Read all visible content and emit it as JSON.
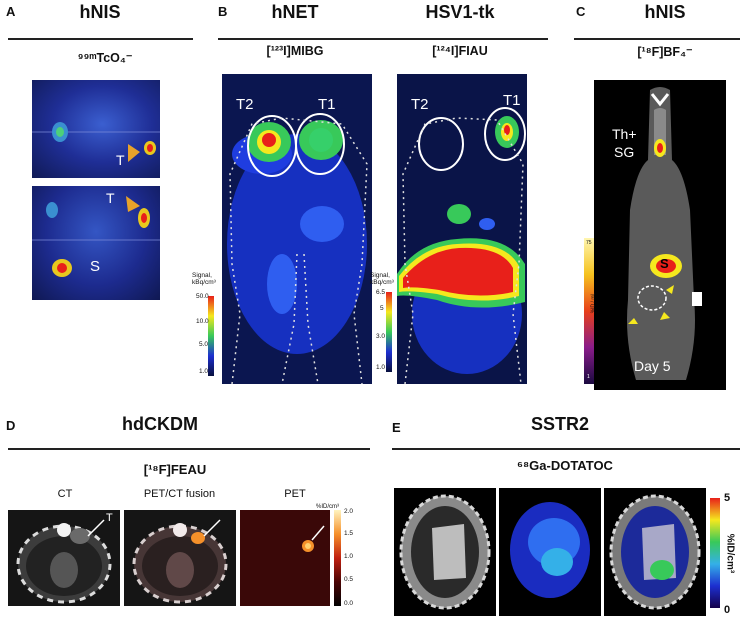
{
  "panels": {
    "A": {
      "letter": "A",
      "title": "hNIS",
      "tracer": "⁹⁹ᵐTcO₄⁻",
      "labels": {
        "t1": "T",
        "t2": "T",
        "s": "S"
      }
    },
    "B": {
      "letter": "B",
      "title": "hNET",
      "tracer": "[¹²³I]MIBG",
      "labels": {
        "t2": "T2",
        "t1": "T1"
      },
      "scale": {
        "title": "Signal, kBq/cm³",
        "ticks": [
          "50.0",
          "10.0",
          "5.0",
          "1.0"
        ]
      }
    },
    "B2": {
      "title": "HSV1-tk",
      "tracer": "[¹²⁴I]FIAU",
      "labels": {
        "t2": "T2",
        "t1": "T1"
      },
      "scale": {
        "title": "Signal, kBq/cm³",
        "ticks": [
          "6.5",
          "5",
          "3.0",
          "1.0"
        ]
      }
    },
    "C": {
      "letter": "C",
      "title": "hNIS",
      "tracer": "[¹⁸F]BF₄⁻",
      "labels": {
        "th": "Th+",
        "sg": "SG",
        "s": "S",
        "day": "Day 5"
      },
      "scale": {
        "top": "75",
        "unit": "%ID / mL",
        "bottom": "1"
      }
    },
    "D": {
      "letter": "D",
      "title": "hdCKDM",
      "tracer": "[¹⁸F]FEAU",
      "subs": {
        "ct": "CT",
        "fusion": "PET/CT fusion",
        "pet": "PET"
      },
      "t_label": "T",
      "scale": {
        "unit": "%ID/cm³",
        "ticks": [
          "2.0",
          "1.5",
          "1.0",
          "0.5",
          "0.0"
        ]
      }
    },
    "E": {
      "letter": "E",
      "title": "SSTR2",
      "tracer": "⁶⁸Ga-DOTATOC",
      "scale": {
        "top": "5",
        "unit": "%ID/cm³",
        "bottom": "0"
      }
    }
  },
  "colors": {
    "heat_red": "#e8201a",
    "heat_yellow": "#f5e81e",
    "heat_green": "#38c95a",
    "heat_blue": "#1d2fd0",
    "bg_navy": "#08103e"
  }
}
